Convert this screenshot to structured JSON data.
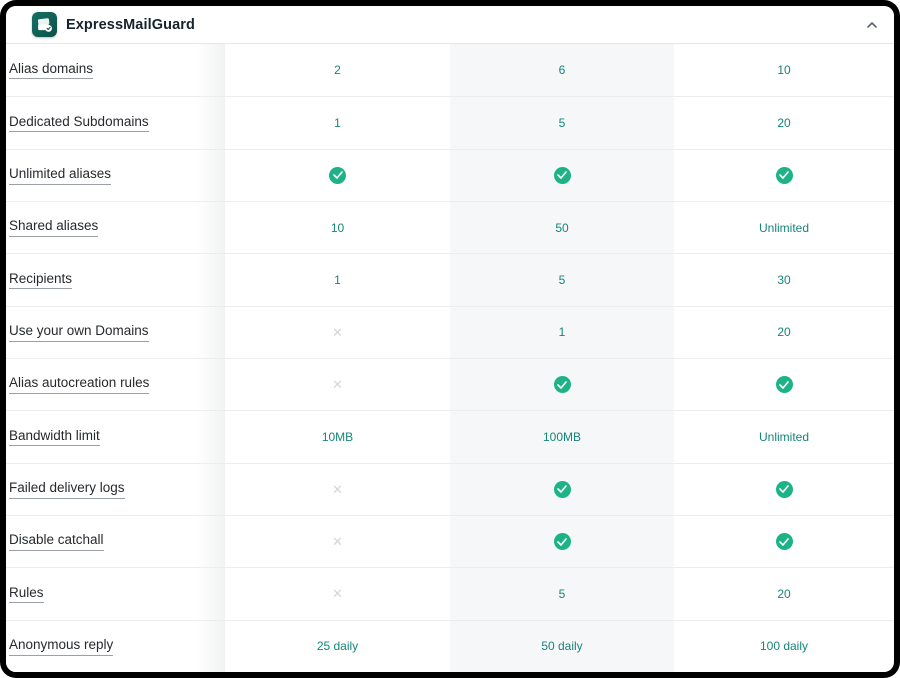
{
  "header": {
    "title": "ExpressMailGuard",
    "logo_icon": "stacked-mail-logo",
    "collapse_icon": "chevron-up"
  },
  "colors": {
    "accent": "#178579",
    "check_green": "#1EB287",
    "cross_gray": "#D3D6DA",
    "highlight_column_bg": "#F6F7F8",
    "logo_teal_dark": "#0B5248",
    "logo_teal_light": "#177065"
  },
  "icons": {
    "cross_glyph": "✕"
  },
  "table": {
    "highlight_column_index": 1,
    "rows": [
      {
        "feature": "Alias domains",
        "values": [
          {
            "type": "text",
            "text": "2"
          },
          {
            "type": "text",
            "text": "6"
          },
          {
            "type": "text",
            "text": "10"
          }
        ]
      },
      {
        "feature": "Dedicated Subdomains",
        "values": [
          {
            "type": "text",
            "text": "1"
          },
          {
            "type": "text",
            "text": "5"
          },
          {
            "type": "text",
            "text": "20"
          }
        ]
      },
      {
        "feature": "Unlimited aliases",
        "values": [
          {
            "type": "check"
          },
          {
            "type": "check"
          },
          {
            "type": "check"
          }
        ]
      },
      {
        "feature": "Shared aliases",
        "values": [
          {
            "type": "text",
            "text": "10"
          },
          {
            "type": "text",
            "text": "50"
          },
          {
            "type": "text",
            "text": "Unlimited"
          }
        ]
      },
      {
        "feature": "Recipients",
        "values": [
          {
            "type": "text",
            "text": "1"
          },
          {
            "type": "text",
            "text": "5"
          },
          {
            "type": "text",
            "text": "30"
          }
        ]
      },
      {
        "feature": "Use your own Domains",
        "values": [
          {
            "type": "cross"
          },
          {
            "type": "text",
            "text": "1"
          },
          {
            "type": "text",
            "text": "20"
          }
        ]
      },
      {
        "feature": "Alias autocreation rules",
        "values": [
          {
            "type": "cross"
          },
          {
            "type": "check"
          },
          {
            "type": "check"
          }
        ]
      },
      {
        "feature": "Bandwidth limit",
        "values": [
          {
            "type": "text",
            "text": "10MB"
          },
          {
            "type": "text",
            "text": "100MB"
          },
          {
            "type": "text",
            "text": "Unlimited"
          }
        ]
      },
      {
        "feature": "Failed delivery logs",
        "values": [
          {
            "type": "cross"
          },
          {
            "type": "check"
          },
          {
            "type": "check"
          }
        ]
      },
      {
        "feature": "Disable catchall",
        "values": [
          {
            "type": "cross"
          },
          {
            "type": "check"
          },
          {
            "type": "check"
          }
        ]
      },
      {
        "feature": "Rules",
        "values": [
          {
            "type": "cross"
          },
          {
            "type": "text",
            "text": "5"
          },
          {
            "type": "text",
            "text": "20"
          }
        ]
      },
      {
        "feature": "Anonymous reply",
        "values": [
          {
            "type": "text",
            "text": "25 daily"
          },
          {
            "type": "text",
            "text": "50 daily"
          },
          {
            "type": "text",
            "text": "100 daily"
          }
        ]
      }
    ]
  }
}
